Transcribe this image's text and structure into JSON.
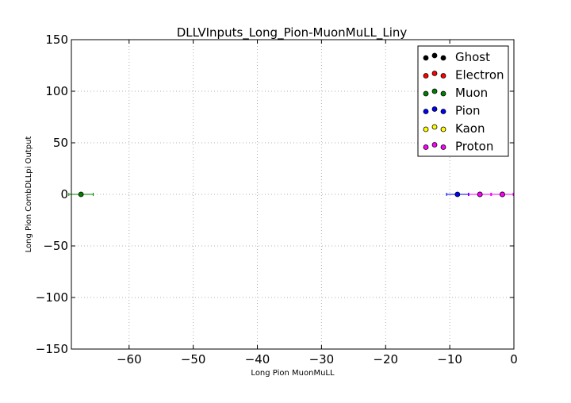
{
  "chart_data": {
    "type": "scatter",
    "title": "DLLVInputs_Long_Pion-MuonMuLL_Liny",
    "xlabel": "Long Pion MuonMuLL",
    "ylabel": "Long Pion CombDLLpi Output",
    "xlim": [
      -69,
      0
    ],
    "ylim": [
      -150,
      150
    ],
    "xticks": [
      -60,
      -50,
      -40,
      -30,
      -20,
      -10,
      0
    ],
    "yticks": [
      -150,
      -100,
      -50,
      0,
      50,
      100,
      150
    ],
    "grid": true,
    "legend_position": "top-right",
    "series": [
      {
        "name": "Ghost",
        "color": "#000000",
        "points": []
      },
      {
        "name": "Electron",
        "color": "#ff0000",
        "points": []
      },
      {
        "name": "Muon",
        "color": "#008000",
        "points": [
          {
            "x": -67.5,
            "y": 0,
            "xerr": 1.9
          }
        ]
      },
      {
        "name": "Pion",
        "color": "#0000ff",
        "points": [
          {
            "x": -8.8,
            "y": 0,
            "xerr": 1.7
          },
          {
            "x": -5.3,
            "y": 0,
            "xerr": 1.7
          },
          {
            "x": -1.8,
            "y": 0,
            "xerr": 1.7
          }
        ]
      },
      {
        "name": "Kaon",
        "color": "#ffff00",
        "points": []
      },
      {
        "name": "Proton",
        "color": "#ff00ff",
        "points": [
          {
            "x": -5.3,
            "y": 0,
            "xerr": 1.7
          },
          {
            "x": -1.8,
            "y": 0,
            "xerr": 1.7
          }
        ]
      }
    ]
  }
}
